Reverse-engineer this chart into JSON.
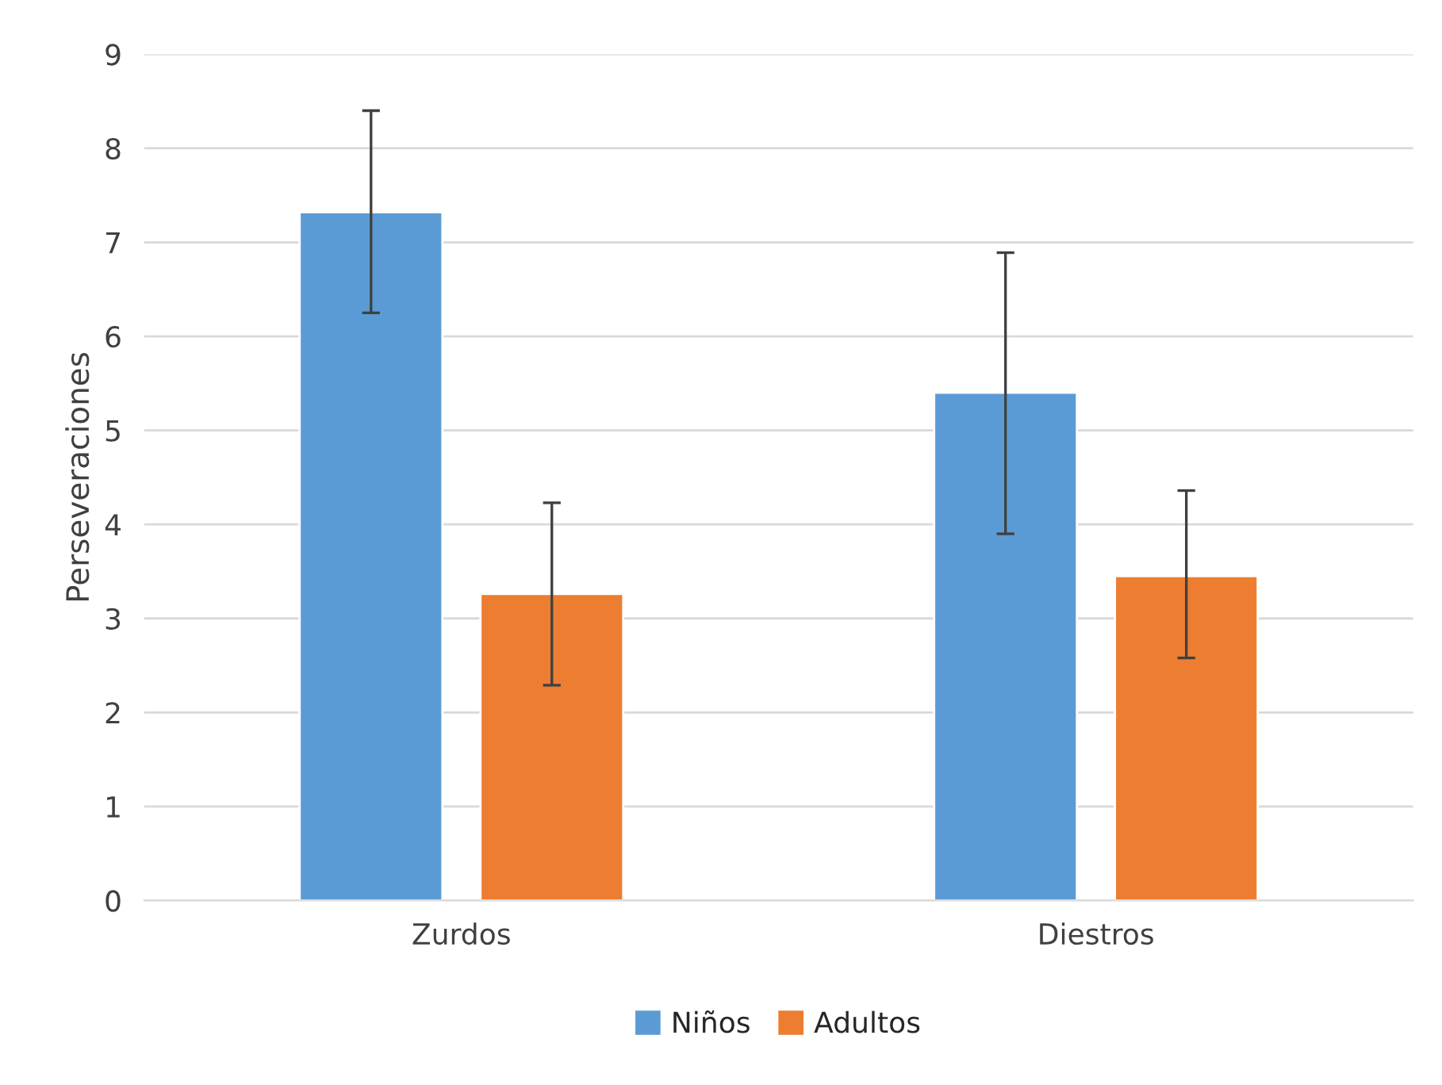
{
  "chart_data": {
    "type": "bar",
    "ylabel": "Perseveraciones",
    "categories": [
      "Zurdos",
      "Diestros"
    ],
    "series": [
      {
        "name": "Niños",
        "color": "#5b9bd5",
        "values": [
          7.32,
          5.4
        ],
        "errors": [
          [
            6.25,
            8.4
          ],
          [
            3.9,
            6.89
          ]
        ]
      },
      {
        "name": "Adultos",
        "color": "#ed7d31",
        "values": [
          3.26,
          3.45
        ],
        "errors": [
          [
            2.29,
            4.23
          ],
          [
            2.58,
            4.36
          ]
        ]
      }
    ],
    "ylim": [
      0,
      9
    ],
    "yticks": [
      0,
      1,
      2,
      3,
      4,
      5,
      6,
      7,
      8,
      9
    ],
    "grid": "y",
    "legend": "bottom"
  }
}
